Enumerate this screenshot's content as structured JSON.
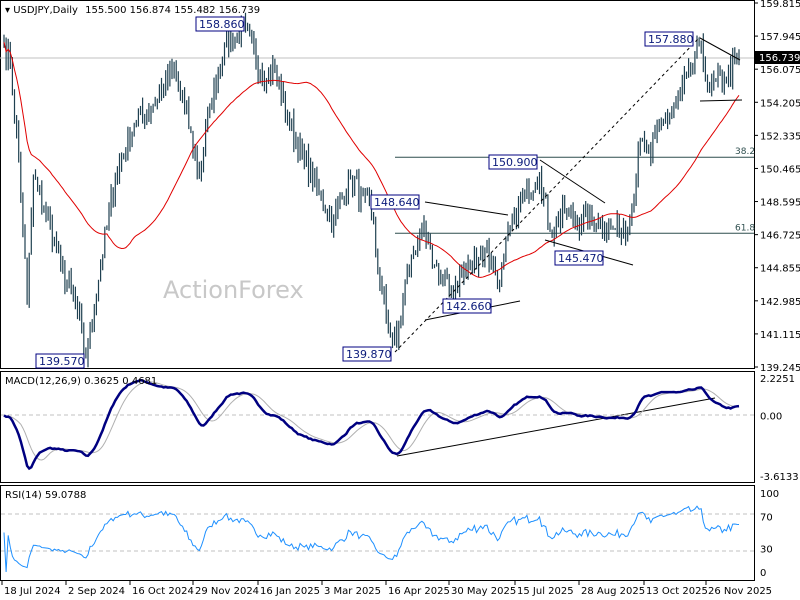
{
  "header": {
    "symbol": "USDJPY,Daily",
    "ohlc": "155.500 156.874 155.482 156.739"
  },
  "watermark": "ActionForex",
  "colors": {
    "bars": "#1f4050",
    "ma": "#e00000",
    "macd": "#000080",
    "signal": "#b0b0b0",
    "rsi": "#1e90ff",
    "label_border": "#000080"
  },
  "chart_data": [
    {
      "type": "line",
      "title": "USDJPY,Daily",
      "price_axis_ticks": [
        "159.815",
        "157.945",
        "156.075",
        "154.205",
        "152.335",
        "150.465",
        "148.595",
        "146.725",
        "144.855",
        "142.985",
        "141.115",
        "139.245"
      ],
      "ylim": [
        139.245,
        159.815
      ],
      "current_price": "156.739",
      "x_ticks": [
        "18 Jul 2024",
        "2 Sep 2024",
        "16 Oct 2024",
        "29 Nov 2024",
        "16 Jan 2025",
        "3 Mar 2025",
        "16 Apr 2025",
        "30 May 2025",
        "15 Jul 2025",
        "28 Aug 2025",
        "13 Oct 2025",
        "26 Nov 2025"
      ],
      "close_keypoints": [
        [
          0,
          157.6
        ],
        [
          3,
          156.5
        ],
        [
          7,
          151
        ],
        [
          11,
          143
        ],
        [
          14,
          150
        ],
        [
          20,
          148
        ],
        [
          27,
          145
        ],
        [
          34,
          143
        ],
        [
          39,
          139.8
        ],
        [
          46,
          145
        ],
        [
          53,
          150
        ],
        [
          62,
          153
        ],
        [
          70,
          154
        ],
        [
          81,
          156
        ],
        [
          86,
          154
        ],
        [
          93,
          150
        ],
        [
          98,
          154
        ],
        [
          105,
          157.5
        ],
        [
          115,
          158.3
        ],
        [
          122,
          156
        ],
        [
          129,
          156
        ],
        [
          136,
          153
        ],
        [
          143,
          151
        ],
        [
          150,
          149
        ],
        [
          157,
          147.5
        ],
        [
          165,
          150
        ],
        [
          170,
          149
        ],
        [
          175,
          148
        ],
        [
          179,
          144
        ],
        [
          184,
          141
        ],
        [
          187,
          140.6
        ],
        [
          191,
          144
        ],
        [
          198,
          147
        ],
        [
          205,
          145
        ],
        [
          212,
          143.5
        ],
        [
          222,
          145
        ],
        [
          229,
          146
        ],
        [
          236,
          144
        ],
        [
          241,
          147
        ],
        [
          248,
          149
        ],
        [
          255,
          150.2
        ],
        [
          260,
          147
        ],
        [
          267,
          148
        ],
        [
          274,
          147.5
        ],
        [
          284,
          147.5
        ],
        [
          291,
          147
        ],
        [
          298,
          147.5
        ],
        [
          303,
          152
        ],
        [
          308,
          151
        ],
        [
          312,
          153
        ],
        [
          320,
          154
        ],
        [
          327,
          156
        ],
        [
          331,
          157.5
        ],
        [
          336,
          155
        ],
        [
          343,
          155.5
        ],
        [
          350,
          156.739
        ]
      ],
      "moving_average_period": 50,
      "annotations": [
        {
          "text": "158.860",
          "price": 158.86
        },
        {
          "text": "139.570",
          "price": 139.57
        },
        {
          "text": "148.640",
          "price": 148.64
        },
        {
          "text": "139.870",
          "price": 139.87
        },
        {
          "text": "142.660",
          "price": 142.66
        },
        {
          "text": "150.900",
          "price": 150.9
        },
        {
          "text": "145.470",
          "price": 145.47
        },
        {
          "text": "157.880",
          "price": 157.88
        }
      ],
      "fib_levels": [
        {
          "text": "38.2",
          "price": 151.1
        },
        {
          "text": "61.8",
          "price": 146.8
        }
      ]
    },
    {
      "type": "line",
      "title": "MACD(12,26,9) 0.3625 0.4681",
      "ticks": [
        "2.2251",
        "0.00",
        "-3.6133"
      ],
      "ylim": [
        -3.6133,
        2.2251
      ]
    },
    {
      "type": "line",
      "title": "RSI(14) 59.0788",
      "ticks": [
        "100",
        "70",
        "30",
        "0"
      ],
      "ylim": [
        0,
        100
      ]
    }
  ]
}
